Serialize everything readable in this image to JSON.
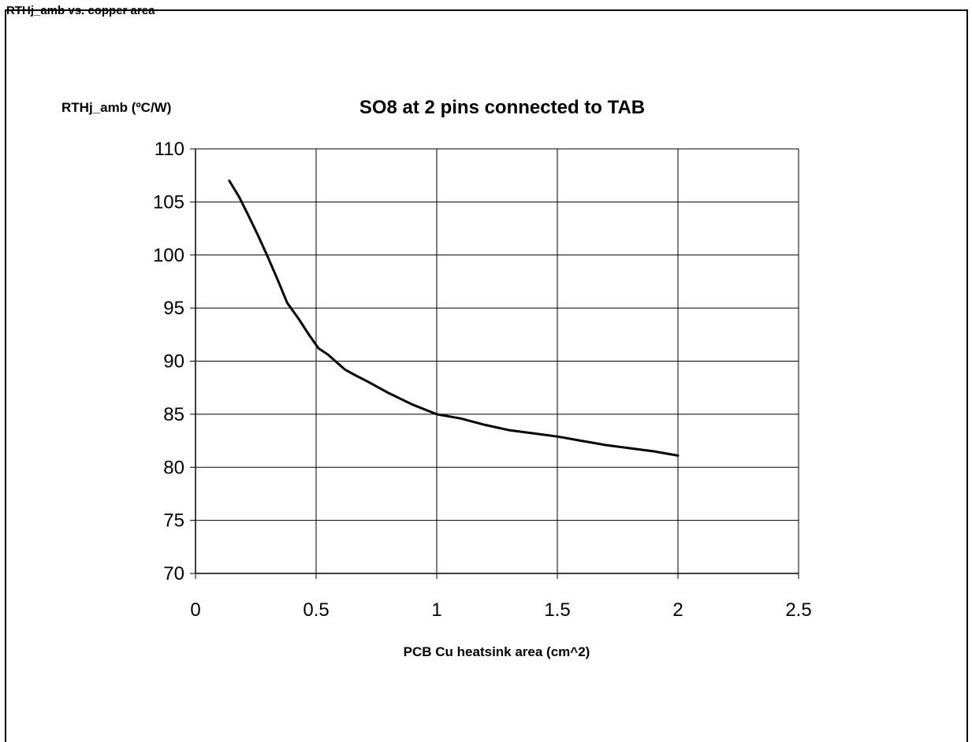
{
  "chart_data": {
    "type": "line",
    "title": "SO8 at 2 pins connected to TAB",
    "ylabel": "RTHj_amb (ºC/W)",
    "xlabel": "PCB Cu heatsink area (cm^2)",
    "xlim": [
      0,
      2.5
    ],
    "ylim": [
      70,
      110
    ],
    "x_ticks": [
      "0",
      "0.5",
      "1",
      "1.5",
      "2",
      "2.5"
    ],
    "y_ticks": [
      "70",
      "75",
      "80",
      "85",
      "90",
      "95",
      "100",
      "105",
      "110"
    ],
    "grid": true,
    "legend": "none",
    "line_color": "#000000",
    "series": [
      {
        "x": [
          0.14,
          0.18,
          0.22,
          0.26,
          0.3,
          0.34,
          0.38,
          0.43,
          0.47,
          0.51,
          0.55,
          0.59,
          0.62,
          0.66,
          0.72,
          0.8,
          0.9,
          1.0,
          1.1,
          1.2,
          1.3,
          1.4,
          1.5,
          1.6,
          1.7,
          1.8,
          1.9,
          2.0
        ],
        "values": [
          107.0,
          105.5,
          103.7,
          101.8,
          99.8,
          97.7,
          95.5,
          93.9,
          92.5,
          91.2,
          90.6,
          89.8,
          89.2,
          88.7,
          88.0,
          87.0,
          85.9,
          85.0,
          84.6,
          84.0,
          83.5,
          83.2,
          82.9,
          82.5,
          82.1,
          81.8,
          81.5,
          81.1
        ]
      }
    ]
  },
  "page": {
    "top_caption": "RTHj_amb vs. copper area"
  }
}
